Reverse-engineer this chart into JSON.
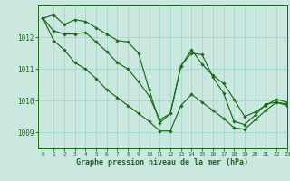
{
  "title": "Graphe pression niveau de la mer (hPa)",
  "bg_color": "#cbe8e0",
  "line_color": "#1a6b1a",
  "grid_color": "#9dd4c8",
  "xlim": [
    -0.5,
    23
  ],
  "ylim": [
    1008.5,
    1013.0
  ],
  "yticks": [
    1009,
    1010,
    1011,
    1012
  ],
  "xticks": [
    0,
    1,
    2,
    3,
    4,
    5,
    6,
    7,
    8,
    9,
    10,
    11,
    12,
    13,
    14,
    15,
    16,
    17,
    18,
    19,
    20,
    21,
    22,
    23
  ],
  "series": [
    [
      1012.6,
      1012.7,
      1012.4,
      1012.55,
      1012.5,
      1012.3,
      1012.1,
      1011.9,
      1011.85,
      1011.5,
      1010.35,
      1009.3,
      1009.6,
      1011.1,
      1011.5,
      1011.45,
      1010.75,
      1010.25,
      1009.35,
      1009.25,
      1009.55,
      1009.9,
      1009.95,
      1009.9
    ],
    [
      1012.6,
      1012.2,
      1012.1,
      1012.1,
      1012.15,
      1011.85,
      1011.55,
      1011.2,
      1011.0,
      1010.6,
      1010.15,
      1009.4,
      1009.6,
      1011.1,
      1011.6,
      1011.15,
      1010.8,
      1010.55,
      1010.05,
      1009.5,
      1009.65,
      1009.85,
      1010.05,
      1009.95
    ],
    [
      1012.6,
      1011.9,
      1011.6,
      1011.2,
      1011.0,
      1010.7,
      1010.35,
      1010.1,
      1009.85,
      1009.6,
      1009.35,
      1009.05,
      1009.05,
      1009.85,
      1010.2,
      1009.95,
      1009.7,
      1009.45,
      1009.15,
      1009.1,
      1009.4,
      1009.7,
      1009.95,
      1009.85
    ]
  ]
}
